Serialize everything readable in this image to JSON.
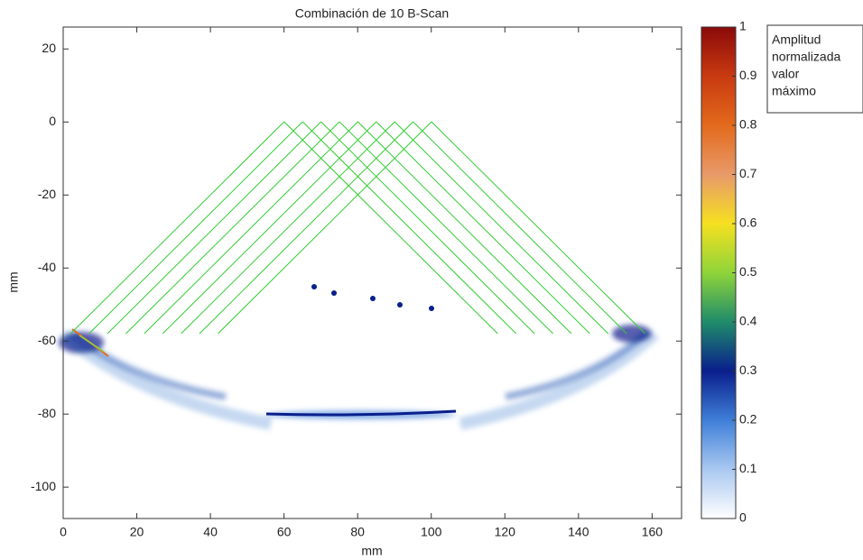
{
  "chart_data": {
    "type": "heatmap",
    "title": "Combinación de 10 B-Scan",
    "x_label": "mm",
    "y_label": "mm",
    "xlim": [
      0,
      168
    ],
    "xticks": [
      0,
      20,
      40,
      60,
      80,
      100,
      120,
      140,
      160
    ],
    "ylim": [
      -108.6,
      26
    ],
    "yticks": [
      -100,
      -80,
      -60,
      -40,
      -20,
      0,
      20
    ],
    "colorbar": {
      "lim": [
        0,
        1
      ],
      "ticks": [
        0,
        0.1,
        0.2,
        0.3,
        0.4,
        0.5,
        0.6,
        0.7,
        0.8,
        0.9,
        1
      ],
      "label": [
        "Amplitud",
        "normalizada",
        "valor",
        "máximo"
      ]
    }
  }
}
